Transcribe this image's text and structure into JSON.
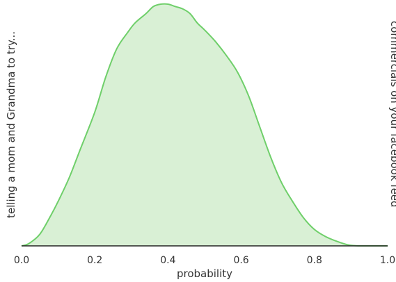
{
  "chart_data": {
    "type": "area",
    "title": "",
    "xlabel": "probability",
    "ylabel_left": "telling a mom and Grandma to try...",
    "ylabel_right": "commercials on your facebook feed",
    "xlim": [
      0,
      1
    ],
    "ylim": [
      0,
      1.03
    ],
    "xticks": [
      0.0,
      0.2,
      0.4,
      0.6,
      0.8,
      1.0
    ],
    "xtick_labels": [
      "0.0",
      "0.2",
      "0.4",
      "0.6",
      "0.8",
      "1.0"
    ],
    "grid": false,
    "fill_color": "#d9f0d5",
    "line_color": "#6fcf6a",
    "baseline_color": "#222222",
    "series": [
      {
        "x": [
          0.0,
          0.02,
          0.05,
          0.08,
          0.1,
          0.13,
          0.16,
          0.2,
          0.23,
          0.26,
          0.29,
          0.31,
          0.34,
          0.36,
          0.38,
          0.4,
          0.42,
          0.44,
          0.46,
          0.48,
          0.5,
          0.53,
          0.56,
          0.59,
          0.62,
          0.65,
          0.68,
          0.71,
          0.74,
          0.77,
          0.8,
          0.83,
          0.86,
          0.89,
          0.92,
          0.95,
          0.98,
          1.0
        ],
        "y": [
          0.0,
          0.01,
          0.05,
          0.13,
          0.19,
          0.29,
          0.41,
          0.57,
          0.72,
          0.84,
          0.91,
          0.95,
          0.99,
          1.02,
          1.03,
          1.03,
          1.02,
          1.01,
          0.99,
          0.95,
          0.92,
          0.87,
          0.81,
          0.74,
          0.64,
          0.51,
          0.38,
          0.27,
          0.19,
          0.12,
          0.07,
          0.04,
          0.02,
          0.005,
          0.0,
          0.0,
          0.0,
          0.0
        ]
      }
    ]
  }
}
